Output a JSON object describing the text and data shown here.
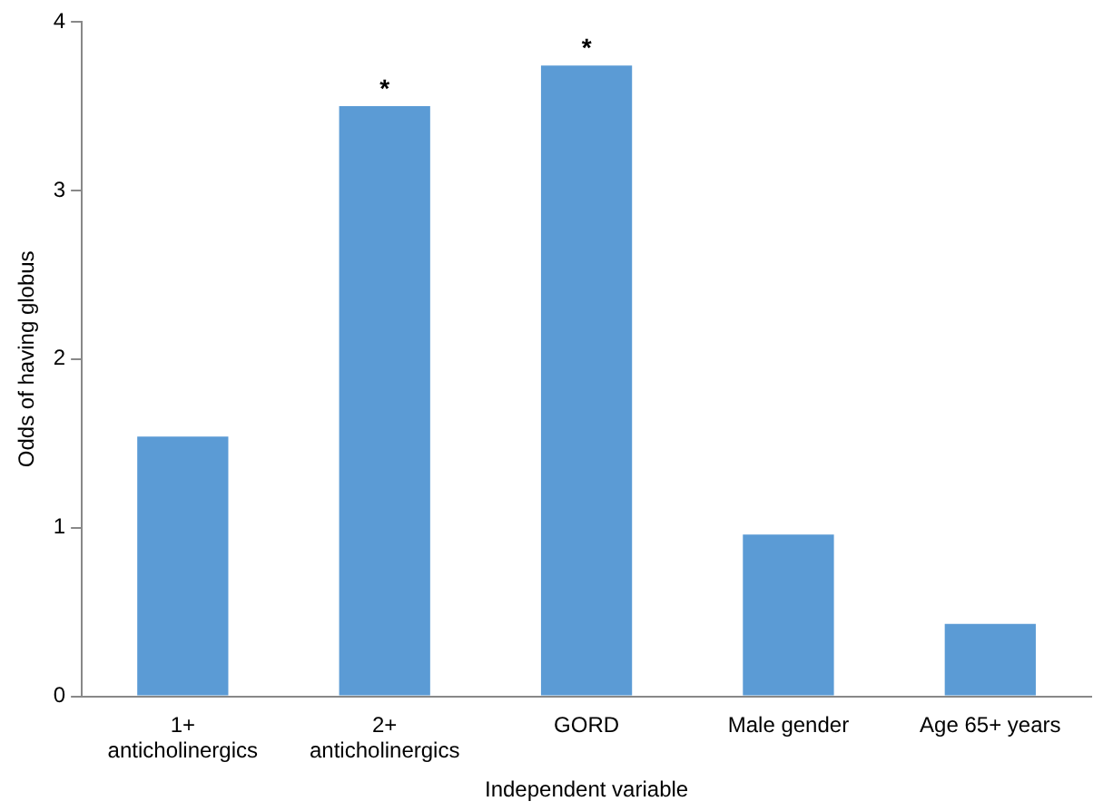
{
  "chart_data": {
    "type": "bar",
    "xlabel": "Independent variable",
    "ylabel": "Odds of having globus",
    "categories": [
      "1+ anticholinergics",
      "2+ anticholinergics",
      "GORD",
      "Male gender",
      "Age 65+ years"
    ],
    "values": [
      1.54,
      3.5,
      3.74,
      0.96,
      0.43
    ],
    "color": "#5b9bd5",
    "ylim": [
      0,
      4
    ],
    "yticks": [
      0,
      1,
      2,
      3,
      4
    ],
    "grid": false,
    "legend": false,
    "annotations": [
      {
        "text": "*",
        "x": "2+ anticholinergics",
        "y": 3.5
      },
      {
        "text": "*",
        "x": "GORD",
        "y": 3.74
      }
    ]
  }
}
